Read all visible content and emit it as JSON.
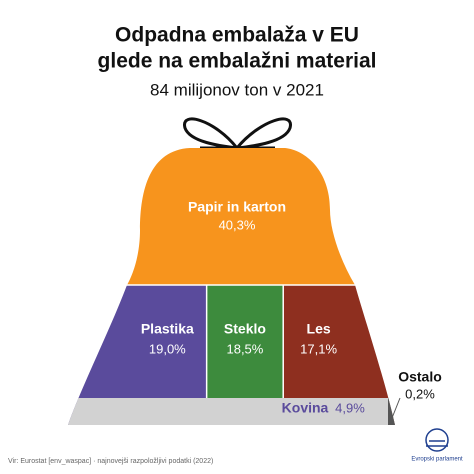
{
  "chart_data": {
    "type": "bag",
    "title": [
      "Odpadna embalaža v EU",
      "glede na embalažni material"
    ],
    "subtitle": "84 milijonov ton v 2021",
    "categories": [
      "Papir in karton",
      "Plastika",
      "Steklo",
      "Les",
      "Kovina",
      "Ostalo"
    ],
    "values": [
      40.3,
      19.0,
      18.5,
      17.1,
      4.9,
      0.2
    ],
    "value_labels": [
      "40,3%",
      "19,0%",
      "18,5%",
      "17,1%",
      "4,9%",
      "0,2%"
    ],
    "colors": [
      "#f7941d",
      "#5a4b9c",
      "#3d8b3d",
      "#8e2f1f",
      "#d2d2d2",
      "#555555"
    ],
    "source": "Vir: Eurostat [env_waspac] · najnovejši razpoložljivi podatki (2022)",
    "logo": "Evropski parlament"
  }
}
